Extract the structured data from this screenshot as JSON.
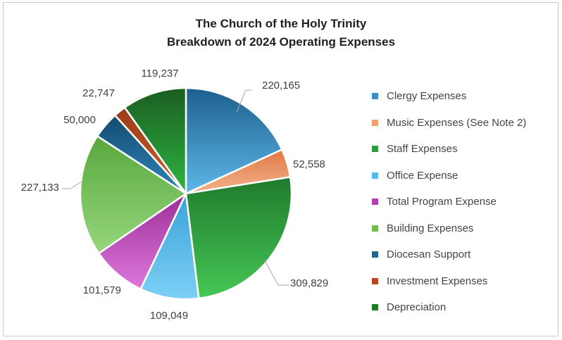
{
  "chart_data": {
    "type": "pie",
    "title": "The Church of the Holy Trinity",
    "subtitle": "Breakdown of 2024 Operating Expenses",
    "categories": [
      "Clergy Expenses",
      "Music Expenses (See Note 2)",
      "Staff Expenses",
      "Office Expense",
      "Total Program Expense",
      "Building Expenses",
      "Diocesan Support",
      "Investment Expenses",
      "Depreciation"
    ],
    "values": [
      220165,
      52558,
      309829,
      109049,
      101579,
      227133,
      50000,
      22747,
      119237
    ],
    "data_labels": [
      "220,165",
      "52,558",
      "309,829",
      "109,049",
      "101,579",
      "227,133",
      "50,000",
      "22,747",
      "119,237"
    ],
    "colors": [
      [
        "#1d5f8e",
        "#5db8e8"
      ],
      [
        "#e07a45",
        "#f3b28c"
      ],
      [
        "#1f7a2c",
        "#46c755"
      ],
      [
        "#3aa2d8",
        "#7dd0f5"
      ],
      [
        "#9b2f99",
        "#de78db"
      ],
      [
        "#58a83d",
        "#97d67d"
      ],
      [
        "#144a6e",
        "#2f87bd"
      ],
      [
        "#9a3b1a",
        "#d2622b"
      ],
      [
        "#1a5e20",
        "#2fb543"
      ]
    ],
    "legend_colors": [
      "#3b8fc4",
      "#f2a06f",
      "#2f9a3c",
      "#56b9ec",
      "#b53fb1",
      "#6fbd4e",
      "#1f6590",
      "#b8491f",
      "#1f7a2a"
    ],
    "legend_position": "right",
    "label_color": "#404040"
  }
}
